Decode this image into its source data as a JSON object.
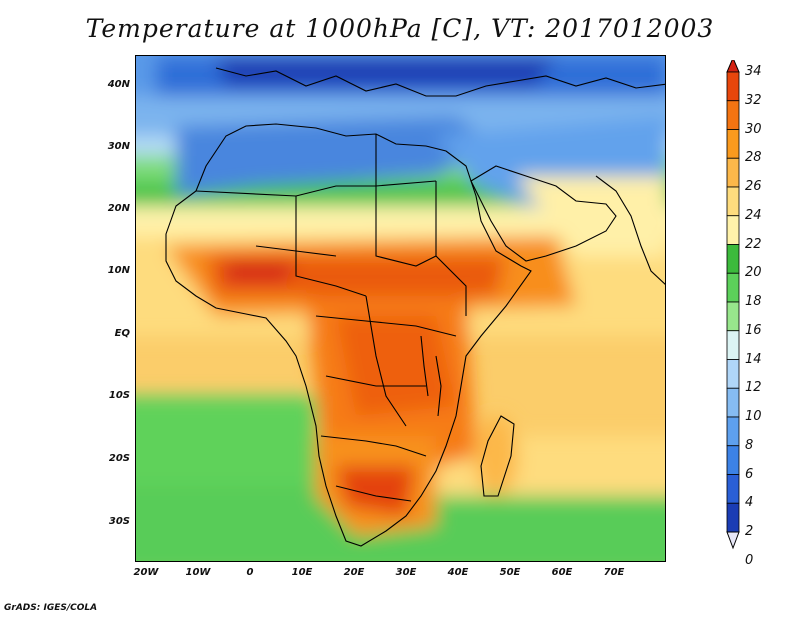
{
  "title": "Temperature at 1000hPa [C], VT: 2017012003",
  "footer": "GrADS: IGES/COLA",
  "lat_labels": [
    "40N",
    "30N",
    "20N",
    "10N",
    "EQ",
    "10S",
    "20S",
    "30S"
  ],
  "lon_labels": [
    "20W",
    "10W",
    "0",
    "10E",
    "20E",
    "30E",
    "40E",
    "50E",
    "60E",
    "70E"
  ],
  "colorbar": {
    "levels": [
      "34",
      "32",
      "30",
      "28",
      "26",
      "24",
      "22",
      "20",
      "18",
      "16",
      "14",
      "12",
      "10",
      "8",
      "6",
      "4",
      "2",
      "0"
    ],
    "colors": [
      "#1a0a6e",
      "#1a3cb4",
      "#2a5fd6",
      "#3c82e6",
      "#5ea0ee",
      "#86bcf2",
      "#b0d6f8",
      "#dcf4f4",
      "#98e68c",
      "#5cd05a",
      "#3cba3c",
      "#fff2aa",
      "#fedc7e",
      "#fcb84a",
      "#fa9a1e",
      "#f47412",
      "#e8460c",
      "#d42212"
    ]
  }
}
